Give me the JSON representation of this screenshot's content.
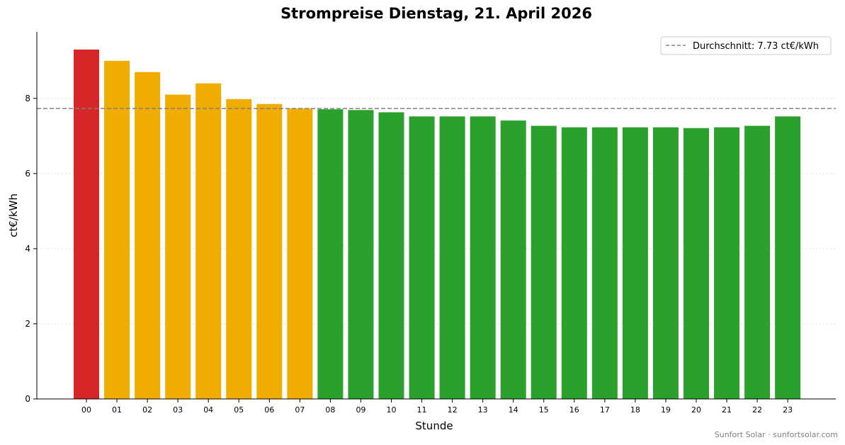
{
  "chart_data": {
    "type": "bar",
    "title": "Strompreise Dienstag, 21. April 2026",
    "xlabel": "Stunde",
    "ylabel": "ct€/kWh",
    "categories": [
      "00",
      "01",
      "02",
      "03",
      "04",
      "05",
      "06",
      "07",
      "08",
      "09",
      "10",
      "11",
      "12",
      "13",
      "14",
      "15",
      "16",
      "17",
      "18",
      "19",
      "20",
      "21",
      "22",
      "23"
    ],
    "values": [
      9.3,
      9.0,
      8.7,
      8.1,
      8.4,
      7.98,
      7.85,
      7.73,
      7.71,
      7.69,
      7.63,
      7.52,
      7.52,
      7.52,
      7.41,
      7.27,
      7.23,
      7.23,
      7.23,
      7.23,
      7.21,
      7.23,
      7.27,
      7.52
    ],
    "colors": [
      "#d62728",
      "#f0ad00",
      "#f0ad00",
      "#f0ad00",
      "#f0ad00",
      "#f0ad00",
      "#f0ad00",
      "#f0ad00",
      "#2ca02c",
      "#2ca02c",
      "#2ca02c",
      "#2ca02c",
      "#2ca02c",
      "#2ca02c",
      "#2ca02c",
      "#2ca02c",
      "#2ca02c",
      "#2ca02c",
      "#2ca02c",
      "#2ca02c",
      "#2ca02c",
      "#2ca02c",
      "#2ca02c",
      "#2ca02c"
    ],
    "ylim": [
      0,
      9.77
    ],
    "yticks": [
      0,
      2,
      4,
      6,
      8
    ],
    "grid": "horizontal dotted",
    "average": {
      "value": 7.73,
      "label": "Durchschnitt: 7.73 ct€/kWh",
      "color": "#808080",
      "style": "dashed"
    },
    "legend": {
      "placement": "top-right"
    }
  },
  "footer": "Sunfort Solar · sunfortsolar.com"
}
